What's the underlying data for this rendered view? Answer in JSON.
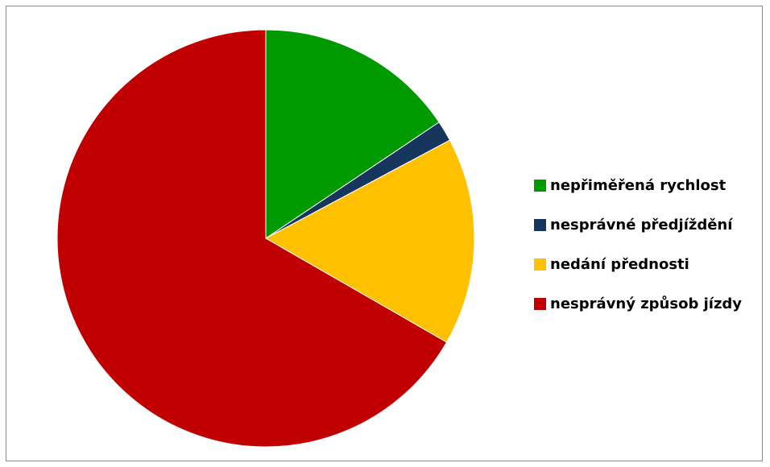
{
  "chart_data": {
    "type": "pie",
    "series": [
      {
        "name": "nepřiměřená rychlost",
        "value": 15.6,
        "color": "#009900"
      },
      {
        "name": "nesprávné předjíždění",
        "value": 1.6,
        "color": "#17365d"
      },
      {
        "name": "nedání přednosti",
        "value": 16.1,
        "color": "#ffc000"
      },
      {
        "name": "nesprávný způsob jízdy",
        "value": 66.7,
        "color": "#c00000"
      }
    ],
    "start_angle_deg": 0,
    "direction": "clockwise",
    "legend_position": "right"
  }
}
